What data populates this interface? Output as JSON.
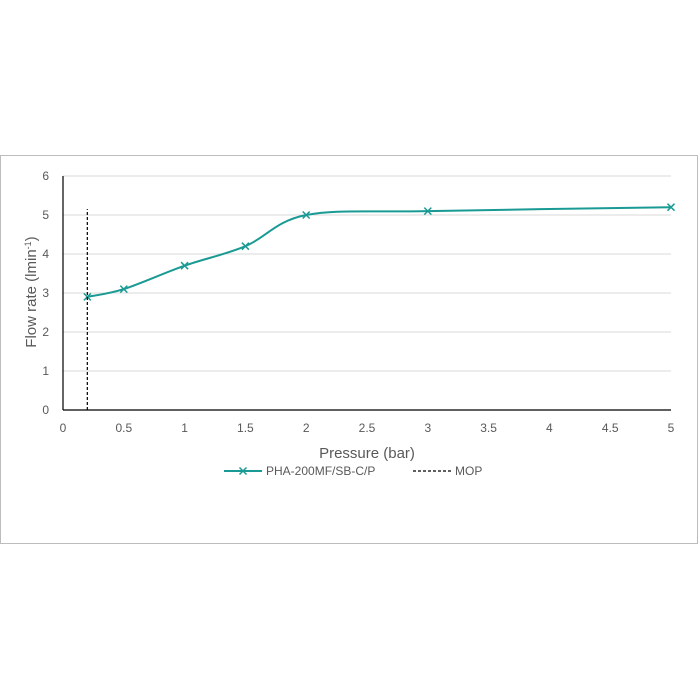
{
  "chart_data": {
    "type": "line",
    "xlabel": "Pressure (bar)",
    "ylabel_parts": [
      "Flow rate (lmin",
      "-1",
      ")"
    ],
    "x_ticks": [
      "0",
      "0.5",
      "1",
      "1.5",
      "2",
      "2.5",
      "3",
      "3.5",
      "4",
      "4.5",
      "5"
    ],
    "y_ticks": [
      "0",
      "1",
      "2",
      "3",
      "4",
      "5",
      "6"
    ],
    "xlim": [
      0,
      5
    ],
    "ylim": [
      0,
      6
    ],
    "grid": "horizontal",
    "legend_position": "bottom",
    "series": [
      {
        "name": "PHA-200MF/SB-C/P",
        "style": "solid-smooth",
        "marker": "x",
        "color": "#1a9a94",
        "x": [
          0.2,
          0.5,
          1,
          1.5,
          2,
          3,
          5
        ],
        "y": [
          2.9,
          3.1,
          3.7,
          4.2,
          5.0,
          5.1,
          5.2
        ]
      },
      {
        "name": "MOP",
        "style": "dashed",
        "color": "#000000",
        "x": [
          0.2,
          0.2
        ],
        "y": [
          0,
          5.15
        ]
      }
    ]
  }
}
